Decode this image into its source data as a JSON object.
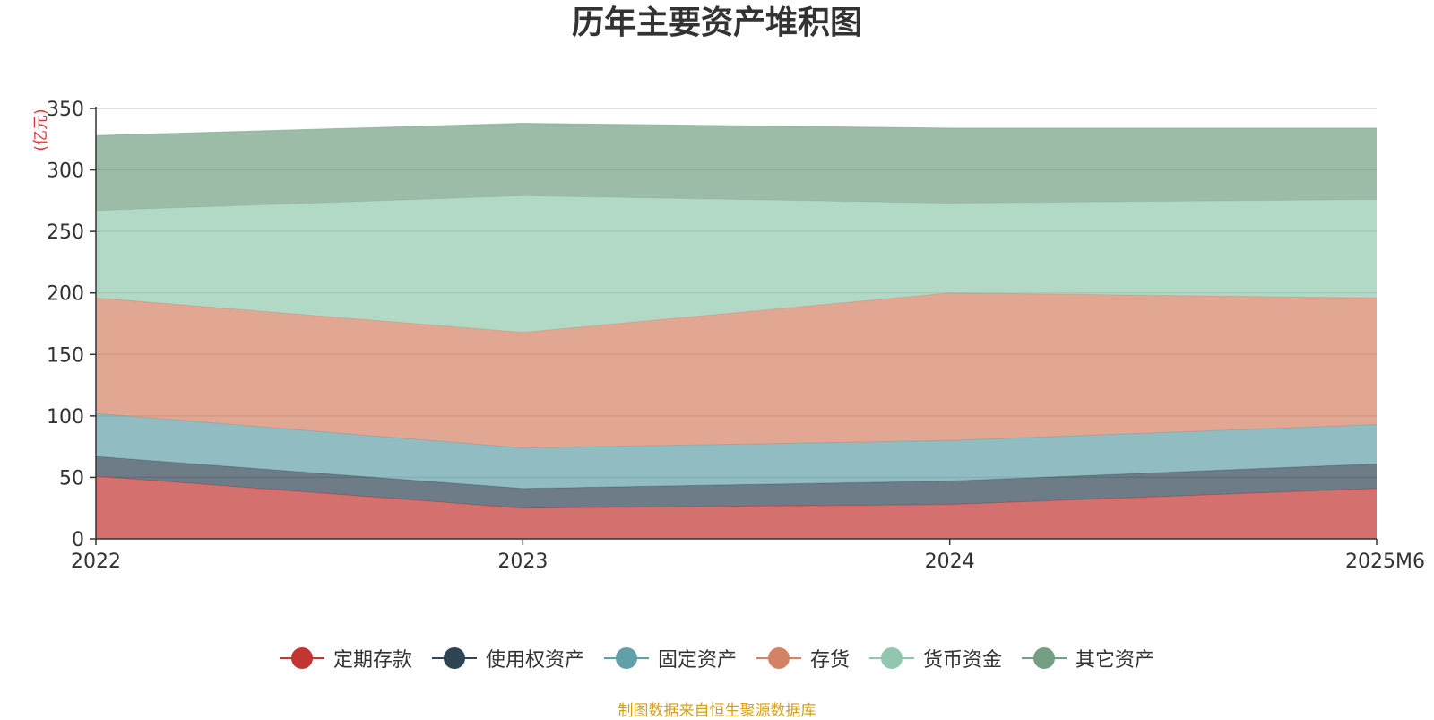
{
  "chart_data": {
    "type": "area",
    "stacked": true,
    "title": "历年主要资产堆积图",
    "ylabel": "(亿元)",
    "xlabel": "",
    "categories": [
      "2022",
      "2023",
      "2024",
      "2025M6"
    ],
    "ylim": [
      0,
      350
    ],
    "yticks": [
      0,
      50,
      100,
      150,
      200,
      250,
      300,
      350
    ],
    "grid": true,
    "legend_position": "bottom",
    "series": [
      {
        "name": "定期存款",
        "color": "#c23531",
        "values": [
          51,
          25,
          28,
          41
        ]
      },
      {
        "name": "使用权资产",
        "color": "#2f4554",
        "values": [
          16,
          16,
          19,
          20
        ]
      },
      {
        "name": "固定资产",
        "color": "#61a0a8",
        "values": [
          35,
          33,
          33,
          32
        ]
      },
      {
        "name": "存货",
        "color": "#d48265",
        "values": [
          94,
          94,
          120,
          103
        ]
      },
      {
        "name": "货币资金",
        "color": "#91c7ae",
        "values": [
          71,
          111,
          73,
          80
        ]
      },
      {
        "name": "其它资产",
        "color": "#749f83",
        "values": [
          61,
          59,
          61,
          58
        ]
      }
    ]
  },
  "source_note": "制图数据来自恒生聚源数据库"
}
